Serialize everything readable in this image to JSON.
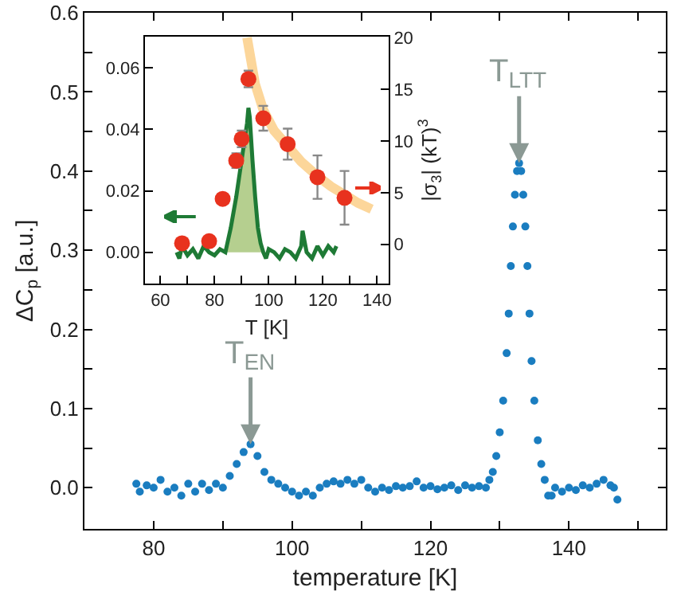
{
  "chart_data": [
    {
      "type": "scatter",
      "xlabel": "temperature [K]",
      "ylabel": "ΔC$_{p}$ [a.u.]",
      "marker": "circle",
      "color": "#1a7dc0",
      "x": [
        77.5,
        78,
        79,
        80,
        81,
        82,
        83,
        84,
        85,
        86,
        87,
        88,
        89,
        90,
        91,
        92,
        93,
        94,
        95,
        96,
        97,
        98,
        99,
        100,
        101,
        102,
        103,
        104,
        105,
        106,
        107,
        108,
        109,
        110,
        111,
        112,
        113,
        114,
        115,
        116,
        117,
        118,
        119,
        120,
        121,
        122,
        123,
        124,
        125,
        126,
        127,
        128,
        128.5,
        129,
        129.5,
        130,
        130.5,
        131,
        131.3,
        131.6,
        131.9,
        132.2,
        132.5,
        132.8,
        133.1,
        133.4,
        133.7,
        134,
        134.3,
        134.6,
        135,
        135.5,
        136,
        136.5,
        137,
        137.5,
        138,
        139,
        140,
        141,
        142,
        143,
        144,
        145,
        146,
        146.5,
        147
      ],
      "values": [
        0.005,
        -0.005,
        0.003,
        0.0,
        0.01,
        -0.005,
        0.0,
        -0.01,
        0.005,
        -0.005,
        0.005,
        -0.003,
        0.005,
        0.0,
        0.015,
        0.03,
        0.045,
        0.055,
        0.04,
        0.02,
        0.01,
        0.005,
        0.0,
        -0.005,
        -0.01,
        -0.005,
        -0.01,
        0.0,
        0.005,
        0.008,
        0.005,
        0.01,
        0.005,
        0.01,
        0.0,
        -0.005,
        0.0,
        -0.003,
        0.002,
        0.0,
        0.002,
        0.008,
        0.0,
        0.002,
        -0.002,
        0.0,
        0.003,
        -0.003,
        0.003,
        0.0,
        0.002,
        0.0,
        0.01,
        0.02,
        0.04,
        0.07,
        0.11,
        0.17,
        0.22,
        0.28,
        0.33,
        0.37,
        0.4,
        0.41,
        0.4,
        0.37,
        0.33,
        0.28,
        0.22,
        0.16,
        0.11,
        0.06,
        0.03,
        0.01,
        -0.01,
        -0.01,
        0.0,
        -0.005,
        0.0,
        -0.003,
        0.003,
        0.0,
        0.005,
        0.01,
        0.003,
        0.0,
        -0.015
      ],
      "xlim": [
        70,
        154
      ],
      "xticks": [
        80,
        {
          "value": 90,
          "label": null
        },
        100,
        {
          "value": 110,
          "label": null
        },
        120,
        {
          "value": 130,
          "label": null
        },
        140,
        {
          "value": 150,
          "label": null
        }
      ],
      "ylim": [
        -0.052,
        0.6
      ],
      "yticks": [
        {
          "value": 0,
          "label": "0.0"
        },
        {
          "value": 0.05,
          "label": null
        },
        0.1,
        {
          "value": 0.15,
          "label": null
        },
        0.2,
        {
          "value": 0.25,
          "label": null
        },
        0.3,
        {
          "value": 0.35,
          "label": null
        },
        0.4,
        {
          "value": 0.45,
          "label": null
        },
        0.5,
        {
          "value": 0.55,
          "label": null
        },
        0.6
      ],
      "annotations": [
        {
          "text": "T$_{LTT}$",
          "x": 132.8,
          "y": 0.41
        },
        {
          "text": "T$_{EN}$",
          "x": 94,
          "y": 0.055
        }
      ]
    },
    {
      "type": "line",
      "xlabel": "T [K]",
      "y2label": "|σ$_{3}$| (kT)$^{3}$",
      "xlim": [
        54.3,
        144.3
      ],
      "xticks": [
        60,
        {
          "value": 70,
          "label": null
        },
        80,
        {
          "value": 90,
          "label": null
        },
        100,
        {
          "value": 110,
          "label": null
        },
        120,
        {
          "value": 130,
          "label": null
        },
        140
      ],
      "ylim": [
        -0.0102,
        0.0702
      ],
      "yticks": [
        {
          "value": 0,
          "label": "0.00"
        },
        {
          "value": 0.02,
          "label": "0.02"
        },
        {
          "value": 0.04,
          "label": "0.04"
        },
        {
          "value": 0.06,
          "label": "0.06"
        }
      ],
      "y2lim": [
        -3.8,
        20.1
      ],
      "y2ticks": [
        0,
        5,
        10,
        15,
        20
      ],
      "series": [
        {
          "type": "area",
          "color": "#b5cf8f",
          "x": [
            84,
            85,
            86,
            87,
            88,
            89,
            90,
            91,
            92,
            92.5,
            93,
            94,
            95,
            96,
            97,
            98
          ],
          "values": [
            0.0,
            0.004,
            0.008,
            0.013,
            0.018,
            0.024,
            0.03,
            0.036,
            0.042,
            0.047,
            0.044,
            0.03,
            0.018,
            0.008,
            0.003,
            0.0
          ]
        },
        {
          "color": "#1e7a35",
          "x": [
            66,
            67,
            68,
            70,
            72,
            74,
            76,
            78,
            80,
            82,
            84,
            85,
            86,
            87,
            88,
            89,
            90,
            91,
            92,
            92.5,
            93,
            94,
            95,
            96,
            97,
            98,
            99,
            100,
            102,
            104,
            106,
            108,
            110,
            112,
            112.5,
            114,
            116,
            118,
            120,
            122,
            124,
            125
          ],
          "values": [
            0.0,
            -0.002,
            0.002,
            -0.001,
            0.001,
            -0.002,
            0.002,
            0.0,
            -0.001,
            0.001,
            0.0,
            0.004,
            0.008,
            0.013,
            0.018,
            0.024,
            0.03,
            0.036,
            0.042,
            0.047,
            0.044,
            0.03,
            0.018,
            0.008,
            0.003,
            0.0,
            -0.002,
            0.001,
            0.0,
            -0.002,
            0.001,
            0.0,
            -0.002,
            0.002,
            0.007,
            0.0,
            -0.002,
            0.002,
            -0.001,
            0.002,
            0.0,
            0.002
          ]
        },
        {
          "type": "line",
          "axis": "y2",
          "color": "#fcd69a",
          "x": [
            92,
            95,
            98,
            102,
            107,
            112,
            118,
            123,
            128,
            133,
            138
          ],
          "values": [
            20,
            15.5,
            13,
            11,
            9.5,
            8,
            6.6,
            5.6,
            4.8,
            4.0,
            3.4
          ]
        },
        {
          "type": "scatter",
          "axis": "y2",
          "color": "#e8321e",
          "marker": "circle",
          "x": [
            68,
            78,
            83,
            88,
            90,
            92.5,
            98,
            107,
            118,
            128
          ],
          "values": [
            0.1,
            0.3,
            4.4,
            8.1,
            10.2,
            16.0,
            12.2,
            9.7,
            6.5,
            4.5
          ],
          "errors": [
            null,
            null,
            null,
            0.7,
            0.8,
            0.8,
            1.2,
            1.5,
            2.1,
            2.6
          ]
        }
      ]
    }
  ]
}
